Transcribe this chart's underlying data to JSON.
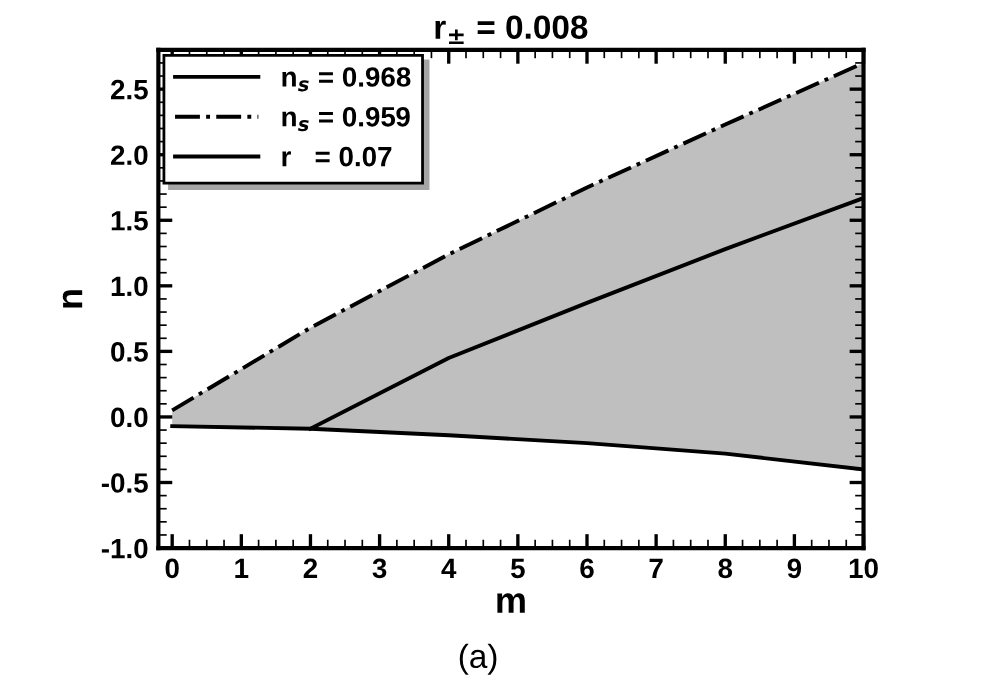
{
  "chart_data": {
    "type": "line",
    "title": "r$_{±}$ = 0.008",
    "xlabel": "m",
    "ylabel": "n",
    "annotations": [
      "(a)"
    ],
    "series": [
      {
        "name": "n$_{s}$ = 0.968",
        "color": "#000000",
        "line_style": "solid",
        "x": [
          2,
          4,
          6,
          8,
          10
        ],
        "values": [
          -0.09,
          0.45,
          0.87,
          1.28,
          1.67
        ]
      },
      {
        "name": "n$_{s}$ = 0.959",
        "color": "#000000",
        "line_style": "dashdot",
        "x": [
          0,
          2,
          4,
          6,
          8,
          10
        ],
        "values": [
          0.05,
          0.68,
          1.24,
          1.75,
          2.23,
          2.7
        ],
        "lower": [
          -0.07,
          -0.09,
          -0.14,
          -0.2,
          -0.28,
          -0.4
        ],
        "upper": [
          0.05,
          0.68,
          1.24,
          1.75,
          2.23,
          2.7
        ]
      },
      {
        "name": "r   = 0.07",
        "color": "#000000",
        "line_style": "solid",
        "x": [
          0,
          2,
          4,
          6,
          8,
          10
        ],
        "values": [
          -0.07,
          -0.09,
          -0.14,
          -0.2,
          -0.28,
          -0.4
        ]
      }
    ],
    "xlim": [
      -0.2,
      10
    ],
    "ylim": [
      -1,
      2.8
    ],
    "xticks": [
      0,
      1,
      2,
      3,
      4,
      5,
      6,
      7,
      8,
      9,
      10
    ],
    "yticks": [
      {
        "value": -1,
        "label": "-1.0"
      },
      {
        "value": -0.5,
        "label": "-0.5"
      },
      {
        "value": 0,
        "label": "0.0"
      },
      {
        "value": 0.5,
        "label": "0.5"
      },
      {
        "value": 1,
        "label": "1.0"
      },
      {
        "value": 1.5,
        "label": "1.5"
      },
      {
        "value": 2,
        "label": "2.0"
      },
      {
        "value": 2.5,
        "label": "2.5"
      }
    ],
    "legend": "top left",
    "grid": false,
    "marker": "none"
  }
}
